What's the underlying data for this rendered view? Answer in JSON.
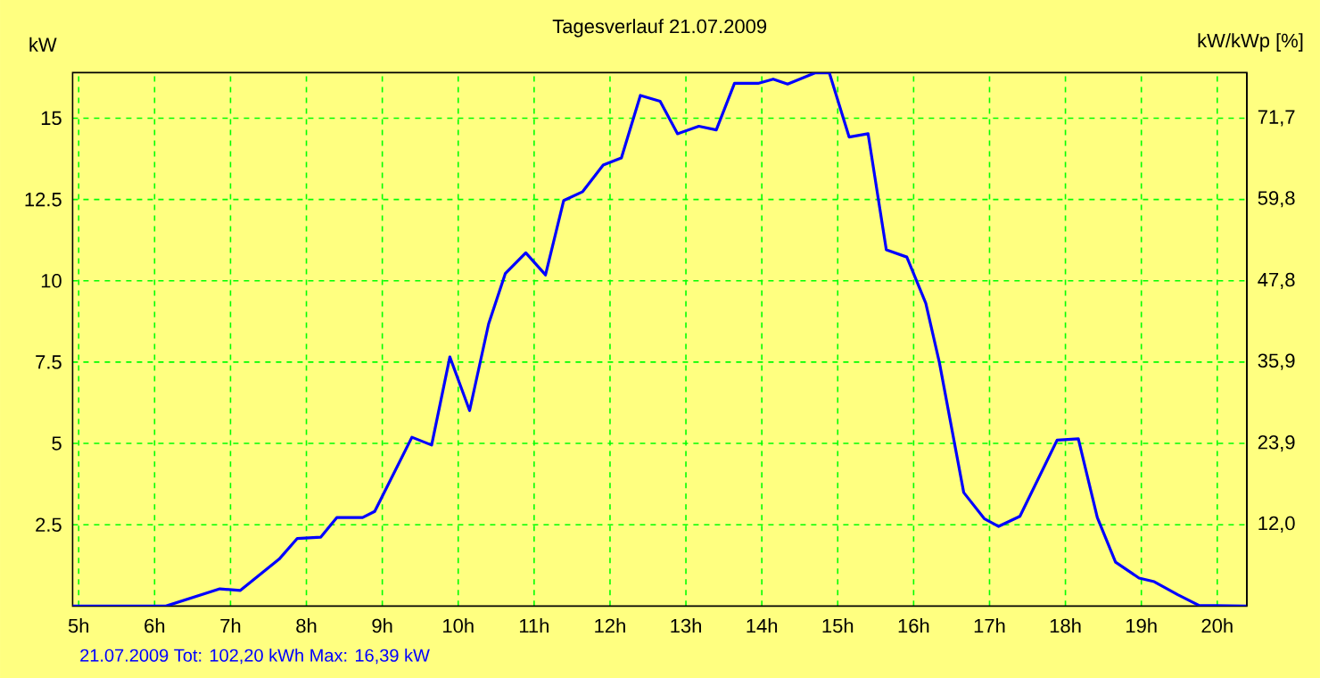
{
  "chart_data": {
    "type": "line",
    "title": "Tagesverlauf 21.07.2009",
    "ylabel": "kW",
    "y2label": "kW/kWp [%]",
    "annotations": [
      "21.07.2009 Tot: 102,20 kWh Max: 16,39 kW"
    ],
    "x": [
      4.92,
      6.15,
      6.86,
      7.13,
      7.64,
      7.88,
      8.19,
      8.4,
      8.74,
      8.9,
      9.39,
      9.65,
      9.89,
      10.15,
      10.4,
      10.62,
      10.89,
      11.15,
      11.39,
      11.64,
      11.91,
      12.15,
      12.4,
      12.66,
      12.89,
      13.17,
      13.4,
      13.64,
      13.95,
      14.15,
      14.34,
      14.7,
      14.89,
      15.15,
      15.4,
      15.64,
      15.91,
      16.16,
      16.34,
      16.66,
      16.93,
      17.12,
      17.4,
      17.89,
      18.17,
      18.42,
      18.66,
      18.97,
      19.17,
      19.48,
      19.76,
      20.39
    ],
    "series": [
      {
        "color": "#0000ff",
        "values": [
          0,
          0,
          0.53,
          0.48,
          1.44,
          2.08,
          2.12,
          2.72,
          2.72,
          2.91,
          5.19,
          4.95,
          7.66,
          6.01,
          8.67,
          10.22,
          10.86,
          10.18,
          12.47,
          12.74,
          13.56,
          13.78,
          15.7,
          15.52,
          14.52,
          14.75,
          14.64,
          16.07,
          16.07,
          16.2,
          16.05,
          16.39,
          16.39,
          14.42,
          14.52,
          10.95,
          10.73,
          9.31,
          7.48,
          3.49,
          2.69,
          2.45,
          2.76,
          5.1,
          5.14,
          2.72,
          1.35,
          0.86,
          0.75,
          0.35,
          0.02,
          0
        ]
      }
    ],
    "xlim": [
      4.92,
      20.39
    ],
    "xticks": [
      {
        "value": 5,
        "label": "5h"
      },
      {
        "value": 6,
        "label": "6h"
      },
      {
        "value": 7,
        "label": "7h"
      },
      {
        "value": 8,
        "label": "8h"
      },
      {
        "value": 9,
        "label": "9h"
      },
      {
        "value": 10,
        "label": "10h"
      },
      {
        "value": 11,
        "label": "11h"
      },
      {
        "value": 12,
        "label": "12h"
      },
      {
        "value": 13,
        "label": "13h"
      },
      {
        "value": 14,
        "label": "14h"
      },
      {
        "value": 15,
        "label": "15h"
      },
      {
        "value": 16,
        "label": "16h"
      },
      {
        "value": 17,
        "label": "17h"
      },
      {
        "value": 18,
        "label": "18h"
      },
      {
        "value": 19,
        "label": "19h"
      },
      {
        "value": 20,
        "label": "20h"
      }
    ],
    "ylim": [
      0,
      16.4
    ],
    "yticks": [
      2.5,
      5,
      7.5,
      10,
      12.5,
      15
    ],
    "y2lim": [
      0,
      78.4
    ],
    "y2ticks": [
      {
        "value": 12.0,
        "label": "12,0"
      },
      {
        "value": 23.9,
        "label": "23,9"
      },
      {
        "value": 35.9,
        "label": "35,9"
      },
      {
        "value": 47.8,
        "label": "47,8"
      },
      {
        "value": 59.8,
        "label": "59,8"
      },
      {
        "value": 71.7,
        "label": "71,7"
      }
    ],
    "grid": true,
    "marker": "none",
    "line_style": "solid"
  }
}
